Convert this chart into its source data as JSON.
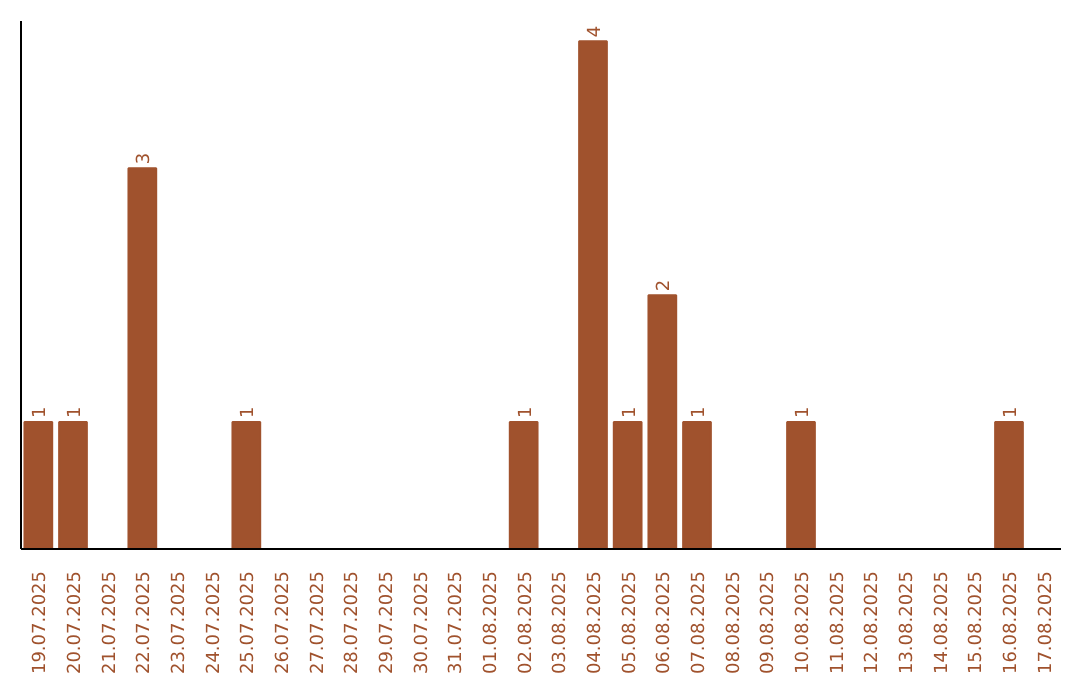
{
  "chart_data": {
    "type": "bar",
    "categories": [
      "19.07.2025",
      "20.07.2025",
      "21.07.2025",
      "22.07.2025",
      "23.07.2025",
      "24.07.2025",
      "25.07.2025",
      "26.07.2025",
      "27.07.2025",
      "28.07.2025",
      "29.07.2025",
      "30.07.2025",
      "31.07.2025",
      "01.08.2025",
      "02.08.2025",
      "03.08.2025",
      "04.08.2025",
      "05.08.2025",
      "06.08.2025",
      "07.08.2025",
      "08.08.2025",
      "09.08.2025",
      "10.08.2025",
      "11.08.2025",
      "12.08.2025",
      "13.08.2025",
      "14.08.2025",
      "15.08.2025",
      "16.08.2025",
      "17.08.2025"
    ],
    "values": [
      1,
      1,
      0,
      3,
      0,
      0,
      1,
      0,
      0,
      0,
      0,
      0,
      0,
      0,
      1,
      0,
      4,
      1,
      2,
      1,
      0,
      0,
      1,
      0,
      0,
      0,
      0,
      0,
      1,
      0
    ],
    "value_labels": [
      "1",
      "1",
      null,
      "3",
      null,
      null,
      "1",
      null,
      null,
      null,
      null,
      null,
      null,
      null,
      "1",
      null,
      "4",
      "1",
      "2",
      "1",
      null,
      null,
      "1",
      null,
      null,
      null,
      null,
      null,
      "1",
      null
    ],
    "color": "#a0522d"
  }
}
